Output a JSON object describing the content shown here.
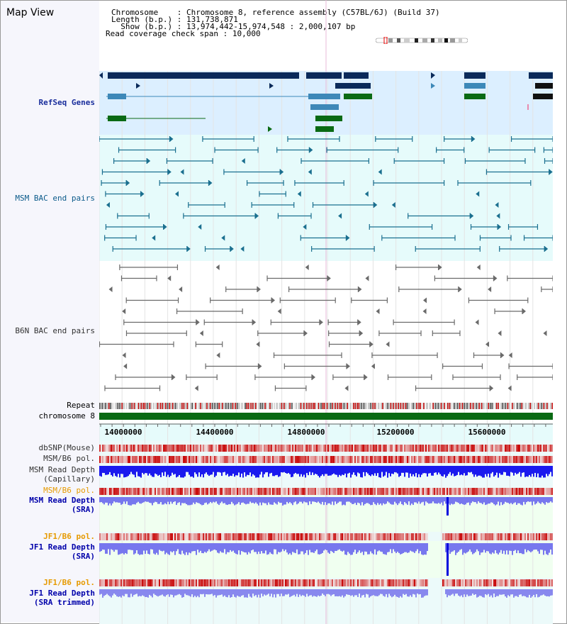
{
  "header": {
    "title": "Map View",
    "chromosome_label": "Chromosome",
    "chromosome_value": "Chromosome 8, reference assembly (C57BL/6J) (Build 37)",
    "length_label": "Length (b.p.)",
    "length_value": "131,738,871",
    "show_label": "Show (b.p.)",
    "show_value": "13,974,442-15,974,548 : 2,000,107 bp",
    "coverage_label": "Read coverage check span",
    "coverage_value": "10,000"
  },
  "tracks": {
    "refseq": "RefSeq Genes",
    "msm_bac": "MSM BAC end pairs",
    "b6n_bac": "B6N BAC end pairs",
    "repeat": "Repeat",
    "chromosome": "chromosome 8",
    "dbsnp": "dbSNP(Mouse)",
    "msm_b6_pol_1": "MSM/B6 pol.",
    "msm_depth_cap_1": "MSM Read Depth",
    "msm_depth_cap_2": "(Capillary)",
    "msm_b6_pol_2": "MSM/B6 pol.",
    "msm_depth_sra_1": "MSM Read Depth",
    "msm_depth_sra_2": "(SRA)",
    "jf1_b6_pol_1": "JF1/B6 pol.",
    "jf1_depth_sra_1": "JF1 Read Depth",
    "jf1_depth_sra_2": "(SRA)",
    "jf1_b6_pol_2": "JF1/B6 pol.",
    "jf1_depth_trim_1": "JF1 Read Depth",
    "jf1_depth_trim_2": "(SRA trimmed)"
  },
  "ruler": {
    "ticks": [
      "14000000",
      "14400000",
      "14800000",
      "15200000",
      "15600000"
    ]
  },
  "colors": {
    "refseq_label": "#1a2e9c",
    "msm_label": "#0a5a8a",
    "b6n_label": "#000000",
    "orange_label": "#e69a00",
    "blue_label": "#0000aa",
    "gene_dark": "#0a2a5a",
    "gene_mid": "#3d88b8",
    "gene_green": "#0a6a14",
    "bac_teal": "#1a6f8f",
    "bac_gray": "#6a6a6a",
    "depth_blue": "#0000ee",
    "depth_light": "#7777ee"
  }
}
